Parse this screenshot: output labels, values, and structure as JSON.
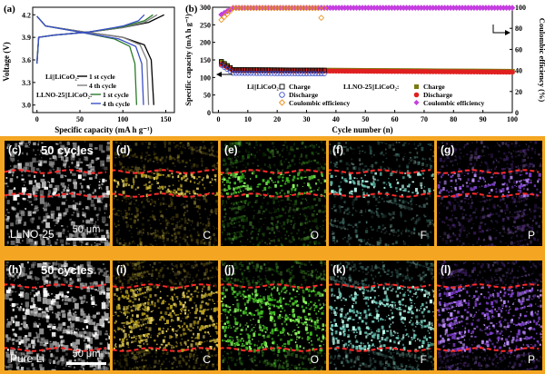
{
  "panel_a": {
    "label": "(a)",
    "ylabel": "Voltage (V)",
    "xlabel": "Specific capacity (mA h g⁻¹)",
    "legend_group1": "Li||LiCoO₂:",
    "legend_group2": "LLNO-25||LiCoO₂:",
    "legend_items": [
      "1 st cycle",
      "4 th cycle",
      "1 st cycle",
      "4 th cycle"
    ]
  },
  "panel_b": {
    "label": "(b)",
    "ylabel_left": "Specific capacity (mA h g⁻¹)",
    "ylabel_right": "Coulombic efficiency (%)",
    "xlabel": "Cycle number (n)",
    "legend_group1": "Li||LiCoO₂:",
    "legend_group2": "LLNO-25||LiCoO₂:",
    "legend_items": [
      "Charge",
      "Discharge",
      "Coulombic efficiency",
      "Charge",
      "Discharge",
      "Coulombic efficiency"
    ]
  },
  "panels_top": {
    "cycles": "50 cycles",
    "sample": "LLNO-25",
    "scale": "50 μm",
    "labels": [
      "(c)",
      "(d)",
      "(e)",
      "(f)",
      "(g)"
    ],
    "elements": [
      "",
      "C",
      "O",
      "F",
      "P"
    ]
  },
  "panels_bottom": {
    "cycles": "50 cycles",
    "sample": "Pure Li",
    "scale": "50 μm",
    "labels": [
      "(h)",
      "(i)",
      "(j)",
      "(k)",
      "(l)"
    ],
    "elements": [
      "",
      "C",
      "O",
      "F",
      "P"
    ]
  },
  "colors": {
    "frame": "#f4a623",
    "black": "#000000",
    "dark_gray": "#808080",
    "green": "#2a7a2a",
    "blue": "#3b4fc8",
    "red": "#e02020",
    "olive": "#7a7a10",
    "orange": "#e8901a",
    "magenta": "#c43ee0",
    "C_map": "#b8a020",
    "O_map": "#40c020",
    "F_map": "#70d0c0",
    "P_map": "#8040d0"
  },
  "chart_data": [
    {
      "type": "line",
      "title": "",
      "xlabel": "Specific capacity (mA h g⁻¹)",
      "ylabel": "Voltage (V)",
      "xlim": [
        -5,
        160
      ],
      "ylim": [
        2.9,
        4.3
      ],
      "xticks": [
        0,
        50,
        100,
        150
      ],
      "yticks": [
        3.0,
        3.3,
        3.6,
        3.9,
        4.2
      ],
      "series": [
        {
          "name": "Li||LiCoO₂: 1 st cycle",
          "color": "#000000",
          "charge": [
            [
              0,
              3.55
            ],
            [
              2,
              3.9
            ],
            [
              20,
              3.93
            ],
            [
              60,
              3.97
            ],
            [
              100,
              4.03
            ],
            [
              130,
              4.1
            ],
            [
              148,
              4.2
            ]
          ],
          "discharge": [
            [
              0,
              4.18
            ],
            [
              10,
              4.05
            ],
            [
              50,
              3.98
            ],
            [
              100,
              3.9
            ],
            [
              125,
              3.8
            ],
            [
              133,
              3.6
            ],
            [
              136,
              3.0
            ]
          ]
        },
        {
          "name": "Li||LiCoO₂: 4 th cycle",
          "color": "#808080",
          "charge": [
            [
              0,
              3.6
            ],
            [
              2,
              3.9
            ],
            [
              20,
              3.93
            ],
            [
              60,
              3.97
            ],
            [
              100,
              4.03
            ],
            [
              125,
              4.1
            ],
            [
              140,
              4.2
            ]
          ],
          "discharge": [
            [
              0,
              4.18
            ],
            [
              10,
              4.05
            ],
            [
              50,
              3.98
            ],
            [
              100,
              3.9
            ],
            [
              120,
              3.8
            ],
            [
              128,
              3.6
            ],
            [
              130,
              3.0
            ]
          ]
        },
        {
          "name": "LLNO-25||LiCoO₂: 1 st cycle",
          "color": "#2a7a2a",
          "charge": [
            [
              0,
              3.55
            ],
            [
              2,
              3.9
            ],
            [
              20,
              3.93
            ],
            [
              60,
              3.97
            ],
            [
              100,
              4.04
            ],
            [
              125,
              4.12
            ],
            [
              135,
              4.2
            ]
          ],
          "discharge": [
            [
              0,
              4.18
            ],
            [
              10,
              4.05
            ],
            [
              50,
              3.97
            ],
            [
              90,
              3.88
            ],
            [
              108,
              3.78
            ],
            [
              114,
              3.55
            ],
            [
              116,
              3.0
            ]
          ]
        },
        {
          "name": "LLNO-25||LiCoO₂: 4 th cycle",
          "color": "#3b4fc8",
          "charge": [
            [
              0,
              3.55
            ],
            [
              2,
              3.9
            ],
            [
              20,
              3.93
            ],
            [
              60,
              3.97
            ],
            [
              100,
              4.05
            ],
            [
              118,
              4.12
            ],
            [
              125,
              4.2
            ]
          ],
          "discharge": [
            [
              0,
              4.18
            ],
            [
              10,
              4.05
            ],
            [
              50,
              3.97
            ],
            [
              95,
              3.88
            ],
            [
              115,
              3.78
            ],
            [
              122,
              3.55
            ],
            [
              124,
              3.0
            ]
          ]
        }
      ]
    },
    {
      "type": "scatter",
      "title": "",
      "xlabel": "Cycle number (n)",
      "ylabel": "Specific capacity (mA h g⁻¹)",
      "ylabel_right": "Coulombic efficiency (%)",
      "xlim": [
        -2,
        100
      ],
      "ylim_left": [
        0,
        300
      ],
      "ylim_right": [
        0,
        100
      ],
      "xticks": [
        0,
        10,
        20,
        30,
        40,
        50,
        60,
        70,
        80,
        90,
        100
      ],
      "yticks_left": [
        0,
        50,
        100,
        150,
        200,
        250,
        300
      ],
      "yticks_right": [
        0,
        20,
        40,
        60,
        80,
        100
      ],
      "series": [
        {
          "name": "Li||LiCoO₂: Charge",
          "marker": "open-square",
          "color": "#000000",
          "x_range": [
            1,
            36
          ],
          "first": 145,
          "plateau": 122
        },
        {
          "name": "Li||LiCoO₂: Discharge",
          "marker": "open-circle",
          "color": "#3b4fc8",
          "x_range": [
            1,
            36
          ],
          "first": 135,
          "plateau": 112
        },
        {
          "name": "Li||LiCoO₂: Coulombic efficiency",
          "marker": "open-diamond",
          "color": "#e8901a",
          "x_range": [
            1,
            36
          ],
          "first": 88,
          "plateau": 99.2,
          "outlier": [
            35,
            90
          ]
        },
        {
          "name": "LLNO-25||LiCoO₂: Charge",
          "marker": "filled-square",
          "color": "#7a7a10",
          "x_range": [
            1,
            100
          ],
          "first": 145,
          "plateau": 122
        },
        {
          "name": "LLNO-25||LiCoO₂: Discharge",
          "marker": "filled-circle",
          "color": "#e02020",
          "x_range": [
            1,
            100
          ],
          "first": 138,
          "plateau": 120
        },
        {
          "name": "LLNO-25||LiCoO₂: Coulombic efficiency",
          "marker": "filled-diamond",
          "color": "#c43ee0",
          "x_range": [
            1,
            100
          ],
          "first": 93,
          "plateau": 99.5
        }
      ]
    }
  ]
}
